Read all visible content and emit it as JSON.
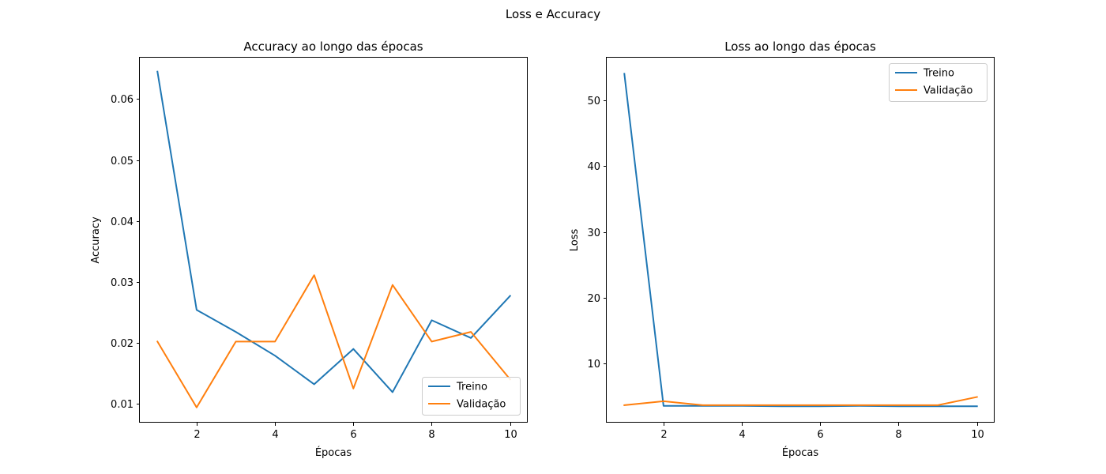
{
  "figure": {
    "suptitle": "Loss e Accuracy"
  },
  "chart_data": [
    {
      "type": "line",
      "title": "Accuracy ao longo das épocas",
      "xlabel": "Épocas",
      "ylabel": "Accuracy",
      "xlim": [
        0.55,
        10.45
      ],
      "ylim": [
        0.0069,
        0.0668
      ],
      "xticks": [
        2,
        4,
        6,
        8,
        10
      ],
      "xtick_labels": [
        "2",
        "4",
        "6",
        "8",
        "10"
      ],
      "yticks": [
        0.01,
        0.02,
        0.03,
        0.04,
        0.05,
        0.06
      ],
      "ytick_labels": [
        "0.01",
        "0.02",
        "0.03",
        "0.04",
        "0.05",
        "0.06"
      ],
      "grid": false,
      "legend_position": "lower right",
      "x": [
        1,
        2,
        3,
        4,
        5,
        6,
        7,
        8,
        9,
        10
      ],
      "series": [
        {
          "name": "Treino",
          "color": "#1f77b4",
          "values": [
            0.0645,
            0.0254,
            0.0218,
            0.0179,
            0.0132,
            0.019,
            0.0119,
            0.0237,
            0.0208,
            0.0277
          ]
        },
        {
          "name": "Validação",
          "color": "#ff7f0e",
          "values": [
            0.0202,
            0.0094,
            0.0202,
            0.0202,
            0.0311,
            0.0125,
            0.0295,
            0.0202,
            0.0218,
            0.014
          ]
        }
      ]
    },
    {
      "type": "line",
      "title": "Loss ao longo das épocas",
      "xlabel": "Épocas",
      "ylabel": "Loss",
      "xlim": [
        0.55,
        10.45
      ],
      "ylim": [
        1.05,
        56.45
      ],
      "xticks": [
        2,
        4,
        6,
        8,
        10
      ],
      "xtick_labels": [
        "2",
        "4",
        "6",
        "8",
        "10"
      ],
      "yticks": [
        10,
        20,
        30,
        40,
        50
      ],
      "ytick_labels": [
        "10",
        "20",
        "30",
        "40",
        "50"
      ],
      "grid": false,
      "legend_position": "upper right",
      "x": [
        1,
        2,
        3,
        4,
        5,
        6,
        7,
        8,
        9,
        10
      ],
      "series": [
        {
          "name": "Treino",
          "color": "#1f77b4",
          "values": [
            54.0,
            3.6,
            3.6,
            3.6,
            3.55,
            3.55,
            3.6,
            3.55,
            3.55,
            3.55
          ]
        },
        {
          "name": "Validação",
          "color": "#ff7f0e",
          "values": [
            3.7,
            4.3,
            3.7,
            3.7,
            3.7,
            3.7,
            3.7,
            3.7,
            3.7,
            4.95
          ]
        }
      ]
    }
  ]
}
